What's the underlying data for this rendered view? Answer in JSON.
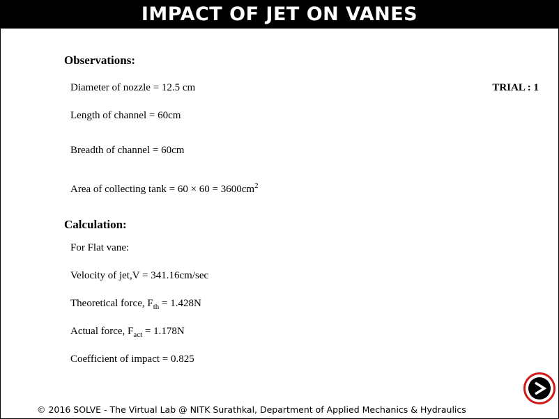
{
  "header": {
    "title": "IMPACT OF JET ON VANES"
  },
  "observations": {
    "heading": "Observations:",
    "trial": "TRIAL : 1",
    "nozzle": "Diameter of nozzle = 12.5 cm",
    "length": "Length of channel = 60cm",
    "breadth": "Breadth of channel = 60cm",
    "area_text": "Area of collecting tank = 60 × 60 = 3600cm",
    "area_sup": "2"
  },
  "calculation": {
    "heading": "Calculation:",
    "vane": "For Flat vane:",
    "velocity": "Velocity of jet,V = 341.16cm/sec",
    "theoretical_prefix": "Theoretical force, F",
    "theoretical_sub": "th",
    "theoretical_value": " = 1.428N",
    "actual_prefix": "Actual force, F",
    "actual_sub": "act",
    "actual_value": " = 1.178N",
    "coefficient": "Coefficient of impact = 0.825"
  },
  "footer": {
    "text": "© 2016 SOLVE - The Virtual Lab @ NITK Surathkal, Department of Applied Mechanics & Hydraulics"
  },
  "icons": {
    "next": "next-arrow-icon"
  },
  "colors": {
    "header_bg": "#000000",
    "button_ring": "#d11a1a"
  }
}
